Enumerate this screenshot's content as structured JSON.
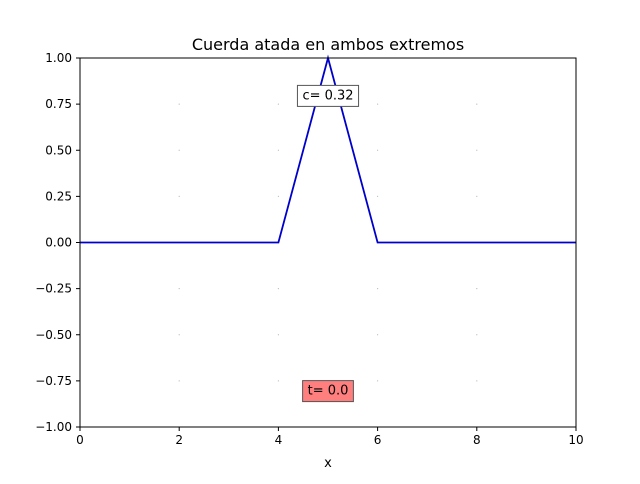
{
  "chart_data": {
    "type": "line",
    "title": "Cuerda atada en ambos extremos",
    "xlabel": "x",
    "ylabel": "",
    "xlim": [
      0,
      10
    ],
    "ylim": [
      -1.0,
      1.0
    ],
    "grid": "dotted points at major ticks",
    "legend": "none",
    "x_ticks": [
      0,
      2,
      4,
      6,
      8,
      10
    ],
    "x_tick_labels": [
      "0",
      "2",
      "4",
      "6",
      "8",
      "10"
    ],
    "y_ticks": [
      1.0,
      0.75,
      0.5,
      0.25,
      0.0,
      -0.25,
      -0.5,
      -0.75,
      -1.0
    ],
    "y_tick_labels": [
      "1.00",
      "0.75",
      "0.50",
      "0.25",
      "0.00",
      "−0.25",
      "−0.50",
      "−0.75",
      "−1.00"
    ],
    "series": [
      {
        "x": [
          0,
          4,
          5,
          6,
          10
        ],
        "y": [
          0,
          0,
          1,
          0,
          0
        ],
        "color": "#0000cc"
      }
    ],
    "annotations": [
      {
        "text": "c= 0.32",
        "x": 5.0,
        "y": 0.8,
        "facecolor": "#ffffff"
      },
      {
        "text": "t= 0.0",
        "x": 5.0,
        "y": -0.8,
        "facecolor": "#ff7f7f"
      }
    ]
  }
}
